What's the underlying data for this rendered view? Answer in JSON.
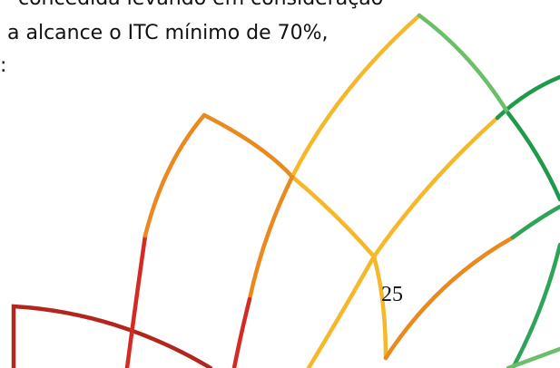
{
  "body": {
    "lines": [
      "concedida levando em consideração",
      "a alcance o ITC mínimo de 70%,",
      ":"
    ]
  },
  "page_number": "25"
}
